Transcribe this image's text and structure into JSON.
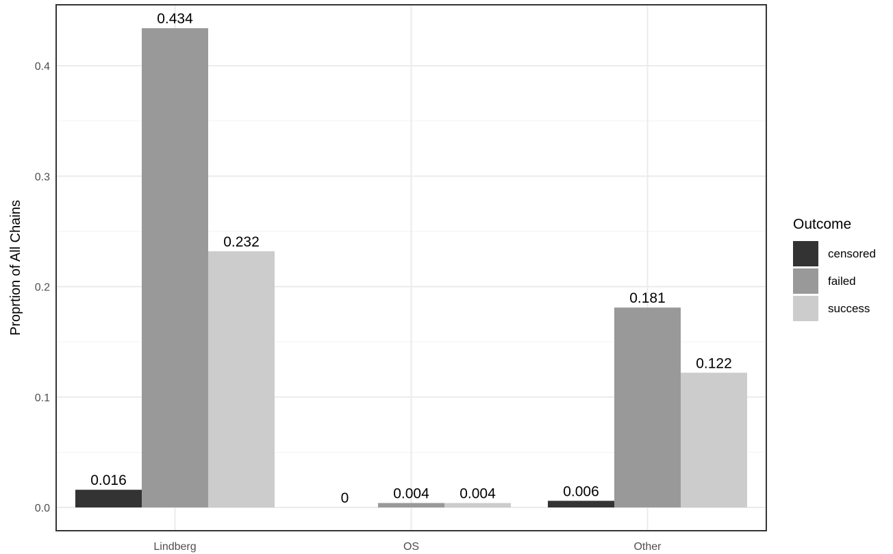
{
  "chart_data": {
    "type": "bar",
    "title": "",
    "xlabel": "",
    "ylabel": "Proprtion of All Chains",
    "categories": [
      "Lindberg",
      "OS",
      "Other"
    ],
    "series": [
      {
        "name": "censored",
        "color": "#333333",
        "values": [
          0.016,
          0,
          0.006
        ],
        "labels": [
          "0.016",
          "0",
          "0.006"
        ]
      },
      {
        "name": "failed",
        "color": "#999999",
        "values": [
          0.434,
          0.004,
          0.181
        ],
        "labels": [
          "0.434",
          "0.004",
          "0.181"
        ]
      },
      {
        "name": "success",
        "color": "#cccccc",
        "values": [
          0.232,
          0.004,
          0.122
        ],
        "labels": [
          "0.232",
          "0.004",
          "0.122"
        ]
      }
    ],
    "yticks": [
      0,
      0.1,
      0.2,
      0.3,
      0.4
    ],
    "ytick_labels": [
      "0.0",
      "0.1",
      "0.2",
      "0.3",
      "0.4"
    ],
    "ylim": [
      0,
      0.434
    ],
    "grid": true,
    "legend": {
      "title": "Outcome",
      "position": "right"
    }
  }
}
